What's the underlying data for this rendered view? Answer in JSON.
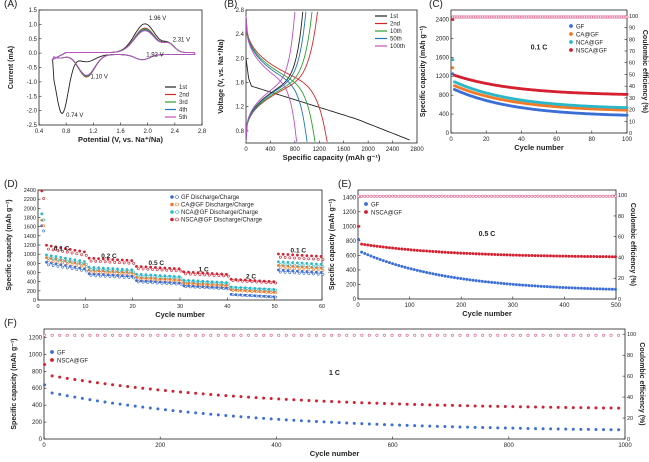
{
  "chart_data": [
    {
      "id": "A",
      "label": "(A)",
      "type": "line",
      "xlabel": "Potential (V, vs. Na⁺/Na)",
      "ylabel": "Current (mA)",
      "xlim": [
        0.4,
        2.8
      ],
      "ylim": [
        -2.5,
        1.5
      ],
      "xticks": [
        "0.4",
        "0.8",
        "1.2",
        "1.6",
        "2.0",
        "2.4",
        "2.8"
      ],
      "yticks": [
        "-2.5",
        "-2.0",
        "-1.5",
        "-1.0",
        "-0.5",
        "0.0",
        "0.5",
        "1.0",
        "1.5"
      ],
      "legend": [
        "1st",
        "2nd",
        "3rd",
        "4th",
        "5th"
      ],
      "legend_position": "bottom-right",
      "series_colors": [
        "#222222",
        "#d62728",
        "#2ca02c",
        "#1f77b4",
        "#c050c0"
      ],
      "annotations": [
        {
          "text": "1.96 V",
          "x": 1.96,
          "y": 1.22
        },
        {
          "text": "2.31 V",
          "x": 2.31,
          "y": 0.48
        },
        {
          "text": "1.92 V",
          "x": 1.92,
          "y": -0.05
        },
        {
          "text": "1.10 V",
          "x": 1.1,
          "y": -0.82
        },
        {
          "text": "0.74 V",
          "x": 0.74,
          "y": -2.15
        }
      ]
    },
    {
      "id": "B",
      "label": "(B)",
      "type": "line",
      "xlabel": "Specific capacity (mAh g⁻¹)",
      "ylabel": "Voltage (V, vs. Na⁺/Na)",
      "xlim": [
        0,
        2800
      ],
      "ylim": [
        0.6,
        2.8
      ],
      "xticks": [
        "0",
        "400",
        "800",
        "1200",
        "1600",
        "2000",
        "2400",
        "2800"
      ],
      "yticks": [
        "0.8",
        "1.2",
        "1.6",
        "2.0",
        "2.4",
        "2.8"
      ],
      "legend": [
        "1st",
        "2nd",
        "10th",
        "50th",
        "100th"
      ],
      "legend_position": "top-right",
      "series_colors": [
        "#222222",
        "#d62728",
        "#2ca02c",
        "#1f77b4",
        "#c050c0"
      ],
      "discharge_capacity": [
        2680,
        1330,
        1130,
        1000,
        830
      ],
      "charge_capacity": [
        930,
        1170,
        1080,
        980,
        800
      ]
    },
    {
      "id": "C",
      "label": "(C)",
      "type": "scatter",
      "xlabel": "Cycle number",
      "ylabel": "Specific capacity (mAh g⁻¹)",
      "y2label": "Coulombic efficiency (%)",
      "xlim": [
        0,
        100
      ],
      "ylim": [
        0,
        2600
      ],
      "y2lim": [
        0,
        105
      ],
      "xticks": [
        "0",
        "20",
        "40",
        "60",
        "80",
        "100"
      ],
      "yticks": [
        "0",
        "400",
        "800",
        "1200",
        "1600",
        "2000",
        "2400"
      ],
      "y2ticks": [
        "0",
        "10",
        "20",
        "30",
        "40",
        "50",
        "60",
        "70",
        "80",
        "90",
        "100"
      ],
      "annotation": "0.1 C",
      "legend_position": "top-right",
      "series": [
        {
          "name": "GF",
          "color": "#3b6fd6",
          "first": 1250,
          "start": 920,
          "end": 340
        },
        {
          "name": "CA@GF",
          "color": "#f07a2a",
          "first": 1380,
          "start": 1000,
          "end": 450
        },
        {
          "name": "NCA@GF",
          "color": "#2bb8c8",
          "first": 1550,
          "start": 1080,
          "end": 500
        },
        {
          "name": "NSCA@GF",
          "color": "#d42030",
          "first": 2400,
          "start": 1220,
          "end": 790
        }
      ],
      "coulombic_efficiency": 99
    },
    {
      "id": "D",
      "label": "(D)",
      "type": "scatter",
      "xlabel": "Cycle number",
      "ylabel": "Specific capacity (mAh g⁻¹)",
      "xlim": [
        0,
        60
      ],
      "ylim": [
        0,
        2400
      ],
      "xticks": [
        "0",
        "10",
        "20",
        "30",
        "40",
        "50",
        "60"
      ],
      "yticks": [
        "0",
        "200",
        "400",
        "600",
        "800",
        "1000",
        "1200",
        "1400",
        "1600",
        "1800",
        "2000",
        "2200",
        "2400"
      ],
      "legend_position": "top-right",
      "rate_labels": [
        {
          "text": "0.1 C",
          "x": 5,
          "y": 1080
        },
        {
          "text": "0.2 C",
          "x": 15,
          "y": 920
        },
        {
          "text": "0.5 C",
          "x": 25,
          "y": 760
        },
        {
          "text": "1 C",
          "x": 35,
          "y": 620
        },
        {
          "text": "2 C",
          "x": 45,
          "y": 470
        },
        {
          "text": "0.1 C",
          "x": 55,
          "y": 1040
        }
      ],
      "series": [
        {
          "name": "GF Discharge/Charge",
          "color": "#3b6fd6",
          "first": 1620,
          "levels": [
            680,
            520,
            370,
            260,
            70,
            600
          ]
        },
        {
          "name": "CA@GF Discharge/Charge",
          "color": "#f07a2a",
          "first": 1740,
          "levels": [
            780,
            600,
            440,
            320,
            170,
            700
          ]
        },
        {
          "name": "NCA@GF Discharge/Charge",
          "color": "#2bb8c8",
          "first": 1880,
          "levels": [
            840,
            660,
            510,
            380,
            230,
            780
          ]
        },
        {
          "name": "NSCA@GF Discharge/Charge",
          "color": "#d42030",
          "first": 2380,
          "levels": [
            1050,
            860,
            680,
            560,
            400,
            950
          ]
        }
      ]
    },
    {
      "id": "E",
      "label": "(E)",
      "type": "scatter",
      "xlabel": "Cycle number",
      "ylabel": "Specific capacity (mAh g⁻¹)",
      "y2label": "Coulombic efficiency (%)",
      "xlim": [
        0,
        500
      ],
      "ylim": [
        0,
        1500
      ],
      "y2lim": [
        0,
        105
      ],
      "xticks": [
        "0",
        "100",
        "200",
        "300",
        "400",
        "500"
      ],
      "yticks": [
        "0",
        "200",
        "400",
        "600",
        "800",
        "1000",
        "1200",
        "1400"
      ],
      "y2ticks": [
        "0",
        "20",
        "40",
        "60",
        "80",
        "100"
      ],
      "annotation": "0.5 C",
      "legend_position": "top-left",
      "series": [
        {
          "name": "GF",
          "color": "#3b6fd6",
          "first": 820,
          "start": 660,
          "end": 100
        },
        {
          "name": "NSCA@GF",
          "color": "#d42030",
          "first": 1000,
          "start": 760,
          "end": 570
        }
      ],
      "coulombic_efficiency": 99
    },
    {
      "id": "F",
      "label": "(F)",
      "type": "scatter",
      "xlabel": "Cycle number",
      "ylabel": "Specific capacity (mAh g⁻¹)",
      "y2label": "Coulombic efficiency (%)",
      "xlim": [
        0,
        1000
      ],
      "ylim": [
        0,
        1300
      ],
      "y2lim": [
        0,
        105
      ],
      "xticks": [
        "0",
        "200",
        "400",
        "600",
        "800",
        "1000"
      ],
      "yticks": [
        "0",
        "200",
        "400",
        "600",
        "800",
        "1000",
        "1200"
      ],
      "y2ticks": [
        "0",
        "20",
        "40",
        "60",
        "80",
        "100"
      ],
      "annotation": "1 C",
      "legend_position": "top-left",
      "series": [
        {
          "name": "GF",
          "color": "#3b6fd6",
          "first": 640,
          "start": 560,
          "end": 80
        },
        {
          "name": "NSCA@GF",
          "color": "#d42030",
          "first": 880,
          "start": 760,
          "end": 340
        }
      ],
      "coulombic_efficiency": 99
    }
  ]
}
